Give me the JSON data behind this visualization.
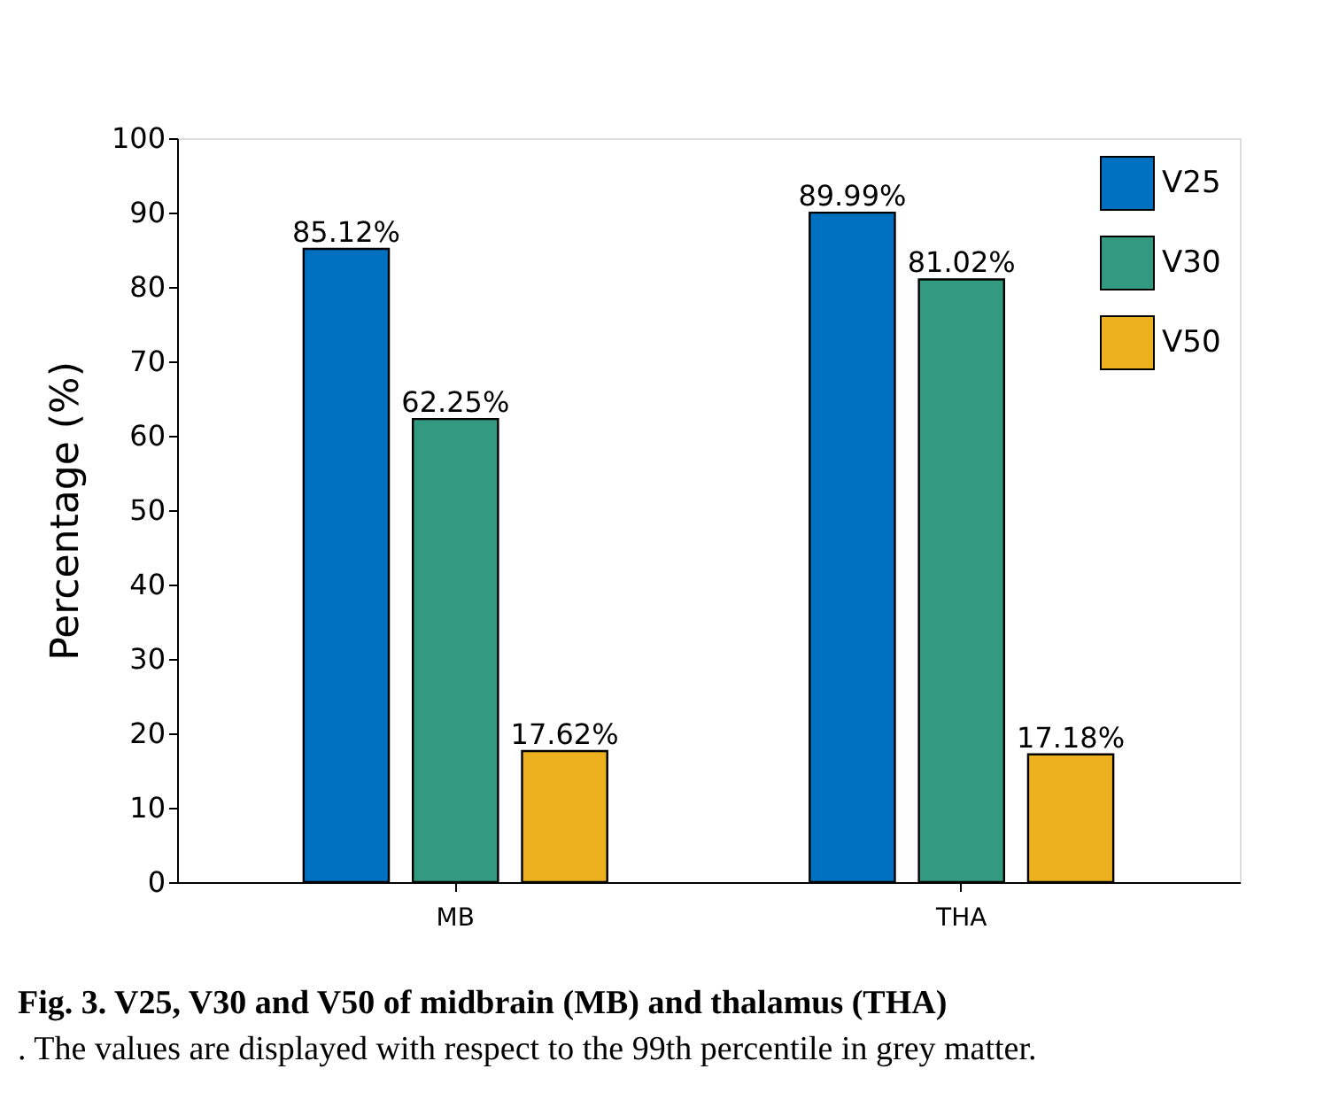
{
  "chart_data": {
    "type": "bar",
    "categories": [
      "MB",
      "THA"
    ],
    "series": [
      {
        "name": "V25",
        "color": "#0070c0",
        "values": [
          85.12,
          89.99
        ],
        "value_labels": [
          "85.12%",
          "89.99%"
        ]
      },
      {
        "name": "V30",
        "color": "#339980",
        "values": [
          62.25,
          81.02
        ],
        "value_labels": [
          "62.25%",
          "81.02%"
        ]
      },
      {
        "name": "V50",
        "color": "#edb120",
        "values": [
          17.62,
          17.18
        ],
        "value_labels": [
          "17.62%",
          "17.18%"
        ]
      }
    ],
    "ylabel": "Percentage (%)",
    "ylim": [
      0,
      100
    ],
    "yticks": [
      0,
      10,
      20,
      30,
      40,
      50,
      60,
      70,
      80,
      90,
      100
    ],
    "grid": false,
    "legend": "top right",
    "annotations": [
      "Fig. 3. V25, V30 and V50 of midbrain (MB) and thalamus (THA)",
      ". The values are displayed with respect to the 99th percentile in grey matter."
    ]
  }
}
